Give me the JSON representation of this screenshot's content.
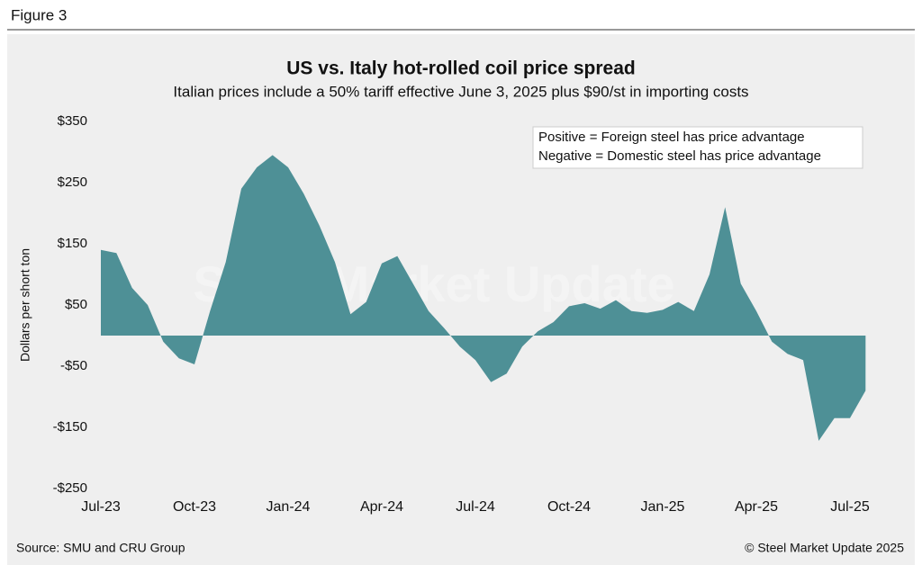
{
  "header": "Figure 3",
  "chart_data": {
    "type": "area",
    "title": "US vs. Italy hot-rolled coil price spread",
    "subtitle": "Italian prices include a 50% tariff effective June 3, 2025 plus $90/st in importing costs",
    "y_label": "Dollars per short ton",
    "annotations": [
      "Positive = Foreign steel has price advantage",
      "Negative = Domestic steel has price advantage"
    ],
    "watermark": "Steel Market Update",
    "source": "Source: SMU and CRU Group",
    "copyright": "© Steel Market Update 2025",
    "color": "#4e9096",
    "categories": [
      "Jul-23",
      null,
      null,
      null,
      null,
      null,
      "Oct-23",
      null,
      null,
      null,
      null,
      null,
      "Jan-24",
      null,
      null,
      null,
      null,
      null,
      "Apr-24",
      null,
      null,
      null,
      null,
      null,
      "Jul-24",
      null,
      null,
      null,
      null,
      null,
      "Oct-24",
      null,
      null,
      null,
      null,
      null,
      "Jan-25",
      null,
      null,
      null,
      null,
      null,
      "Apr-25",
      null,
      null,
      null,
      null,
      null,
      "Jul-25",
      null
    ],
    "values": [
      140,
      135,
      78,
      50,
      -10,
      -37,
      -47,
      40,
      120,
      240,
      275,
      295,
      275,
      232,
      180,
      120,
      35,
      55,
      118,
      130,
      85,
      40,
      12,
      -18,
      -40,
      -76,
      -62,
      -18,
      7,
      22,
      48,
      53,
      44,
      58,
      40,
      37,
      42,
      55,
      40,
      100,
      210,
      85,
      40,
      -10,
      -30,
      -40,
      -172,
      -135,
      -135,
      -90
    ],
    "ylim": [
      -250,
      350
    ],
    "yticks": [
      {
        "value": 350,
        "label": "$350"
      },
      {
        "value": 250,
        "label": "$250"
      },
      {
        "value": 150,
        "label": "$150"
      },
      {
        "value": 50,
        "label": "$50"
      },
      {
        "value": -50,
        "label": "-$50"
      },
      {
        "value": -150,
        "label": "-$150"
      },
      {
        "value": -250,
        "label": "-$250"
      }
    ]
  }
}
